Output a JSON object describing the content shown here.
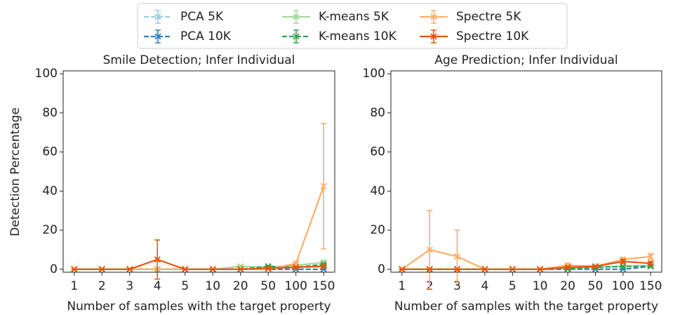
{
  "chart_data": [
    {
      "type": "line",
      "title": "Smile Detection; Infer Individual",
      "xlabel": "Number of samples with the target property",
      "ylabel": "Detection Percentage",
      "categories": [
        "1",
        "2",
        "3",
        "4",
        "5",
        "10",
        "20",
        "50",
        "100",
        "150"
      ],
      "ylim": [
        -1.5,
        101.5
      ],
      "yticks": [
        0,
        20,
        40,
        60,
        80,
        100
      ],
      "series": [
        {
          "name": "PCA 5K",
          "color": "#9ecae1",
          "linestyle": "dashed",
          "values": [
            0,
            0,
            0,
            0,
            0,
            0,
            0,
            0,
            0,
            0
          ],
          "errors": [
            0,
            0,
            0,
            0,
            0,
            0,
            0,
            0,
            0,
            0
          ]
        },
        {
          "name": "PCA 10K",
          "color": "#3182bd",
          "linestyle": "dashed",
          "values": [
            0,
            0,
            0,
            0,
            0,
            0,
            0,
            0,
            0,
            0
          ],
          "errors": [
            0,
            0,
            0,
            0,
            0,
            0,
            0,
            0,
            0,
            0
          ]
        },
        {
          "name": "K-means 5K",
          "color": "#a1d99b",
          "linestyle": "solid",
          "values": [
            0,
            0,
            0,
            0,
            0,
            0,
            1.5,
            1,
            2,
            3.5
          ],
          "errors": [
            0,
            0,
            0,
            0,
            0,
            0,
            0.5,
            0.5,
            0.5,
            1
          ]
        },
        {
          "name": "K-means 10K",
          "color": "#31a354",
          "linestyle": "dashed",
          "values": [
            0,
            0,
            0,
            0,
            0,
            0,
            0,
            1.5,
            1,
            2.5
          ],
          "errors": [
            0,
            0,
            0,
            0,
            0,
            0,
            0,
            0.5,
            0.5,
            0.5
          ]
        },
        {
          "name": "Spectre 5K",
          "color": "#fdae6b",
          "linestyle": "solid",
          "values": [
            0,
            0,
            0,
            0,
            0,
            0,
            0,
            0,
            3,
            42.5
          ],
          "errors": [
            0,
            0,
            0,
            0,
            0,
            0,
            0,
            0,
            1,
            32
          ]
        },
        {
          "name": "Spectre 10K",
          "color": "#e6550d",
          "linestyle": "solid",
          "values": [
            0,
            0,
            0,
            5,
            0,
            0,
            0,
            0.5,
            1,
            1.5
          ],
          "errors": [
            0,
            0,
            0,
            10,
            0,
            0,
            0,
            0.5,
            0.5,
            0.5
          ]
        }
      ]
    },
    {
      "type": "line",
      "title": "Age Prediction; Infer Individual",
      "xlabel": "Number of samples with the target property",
      "categories": [
        "1",
        "2",
        "3",
        "4",
        "5",
        "10",
        "20",
        "50",
        "100",
        "150"
      ],
      "ylim": [
        -1.5,
        101.5
      ],
      "yticks": [
        0,
        20,
        40,
        60,
        80,
        100
      ],
      "series": [
        {
          "name": "PCA 5K",
          "color": "#9ecae1",
          "linestyle": "dashed",
          "values": [
            0,
            0,
            0,
            0,
            0,
            0,
            0,
            0,
            0,
            1.5
          ],
          "errors": [
            0,
            0,
            0,
            0,
            0,
            0,
            0,
            0,
            0,
            0.5
          ]
        },
        {
          "name": "PCA 10K",
          "color": "#3182bd",
          "linestyle": "dashed",
          "values": [
            0,
            0,
            0,
            0,
            0,
            0,
            0,
            0,
            0,
            1.5
          ],
          "errors": [
            0,
            0,
            0,
            0,
            0,
            0,
            0,
            0,
            0,
            0.5
          ]
        },
        {
          "name": "K-means 5K",
          "color": "#a1d99b",
          "linestyle": "solid",
          "values": [
            0,
            0,
            0,
            0,
            0,
            0,
            0.5,
            1,
            1.5,
            2
          ],
          "errors": [
            0,
            0,
            0,
            0,
            0,
            0,
            0.5,
            0.5,
            0.5,
            0.5
          ]
        },
        {
          "name": "K-means 10K",
          "color": "#31a354",
          "linestyle": "dashed",
          "values": [
            0,
            0,
            0,
            0,
            0,
            0,
            0.5,
            1,
            1.5,
            1.5
          ],
          "errors": [
            0,
            0,
            0,
            0,
            0,
            0,
            0.5,
            0.5,
            0.5,
            0.5
          ]
        },
        {
          "name": "Spectre 5K",
          "color": "#fdae6b",
          "linestyle": "solid",
          "values": [
            0,
            10,
            6.5,
            0,
            0,
            0,
            2,
            1.5,
            5,
            6.5
          ],
          "errors": [
            0,
            20,
            13.5,
            0,
            0,
            0,
            1,
            0.5,
            1,
            1.5
          ]
        },
        {
          "name": "Spectre 10K",
          "color": "#e6550d",
          "linestyle": "solid",
          "values": [
            0,
            0,
            0,
            0,
            0,
            0,
            1,
            1.5,
            4,
            3
          ],
          "errors": [
            0,
            0,
            0,
            0,
            0,
            0,
            0.5,
            0.5,
            1,
            1
          ]
        }
      ]
    }
  ]
}
